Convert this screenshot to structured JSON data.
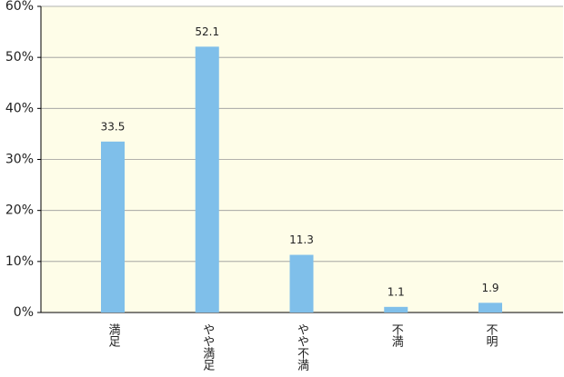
{
  "chart_data": {
    "type": "bar",
    "categories": [
      "満足",
      "やや満足",
      "やや不満",
      "不満",
      "不明"
    ],
    "values": [
      33.5,
      52.1,
      11.3,
      1.1,
      1.9
    ],
    "color": "#7fbfea",
    "ylim": [
      0,
      60
    ],
    "yticks": [
      {
        "value": 0,
        "label": "0%"
      },
      {
        "value": 10,
        "label": "10%"
      },
      {
        "value": 20,
        "label": "20%"
      },
      {
        "value": 30,
        "label": "30%"
      },
      {
        "value": 40,
        "label": "40%"
      },
      {
        "value": 50,
        "label": "50%"
      },
      {
        "value": 60,
        "label": "60%"
      }
    ],
    "grid": true
  }
}
